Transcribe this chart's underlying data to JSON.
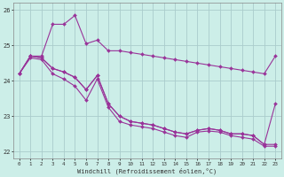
{
  "xlabel": "Windchill (Refroidissement éolien,°C)",
  "background_color": "#cceee8",
  "grid_color": "#aacccc",
  "line_color": "#993399",
  "x_hours": [
    0,
    1,
    2,
    3,
    4,
    5,
    6,
    7,
    8,
    9,
    10,
    11,
    12,
    13,
    14,
    15,
    16,
    17,
    18,
    19,
    20,
    21,
    22,
    23
  ],
  "series_max": [
    24.2,
    24.7,
    24.7,
    25.6,
    25.6,
    25.85,
    25.05,
    25.15,
    24.85,
    24.85,
    24.8,
    24.75,
    24.7,
    24.65,
    24.6,
    24.55,
    24.5,
    24.45,
    24.4,
    24.35,
    24.3,
    24.25,
    24.2,
    24.7
  ],
  "series_mid": [
    24.2,
    24.7,
    24.65,
    24.35,
    24.25,
    24.1,
    23.75,
    24.15,
    23.35,
    23.0,
    22.85,
    22.8,
    22.75,
    22.65,
    22.55,
    22.5,
    22.6,
    22.65,
    22.6,
    22.5,
    22.5,
    22.45,
    22.2,
    22.2
  ],
  "series_min": [
    24.2,
    24.65,
    24.6,
    24.2,
    24.05,
    23.85,
    23.45,
    24.05,
    23.25,
    22.85,
    22.75,
    22.7,
    22.65,
    22.55,
    22.45,
    22.4,
    22.55,
    22.58,
    22.55,
    22.45,
    22.4,
    22.35,
    22.15,
    22.15
  ],
  "series_last": [
    24.2,
    24.7,
    24.65,
    24.35,
    24.25,
    24.1,
    23.75,
    24.15,
    23.35,
    23.0,
    22.85,
    22.8,
    22.75,
    22.65,
    22.55,
    22.5,
    22.6,
    22.65,
    22.6,
    22.5,
    22.5,
    22.45,
    22.2,
    23.35
  ],
  "ylim": [
    21.8,
    26.2
  ],
  "yticks": [
    22,
    23,
    24,
    25,
    26
  ],
  "xticks": [
    0,
    1,
    2,
    3,
    4,
    5,
    6,
    7,
    8,
    9,
    10,
    11,
    12,
    13,
    14,
    15,
    16,
    17,
    18,
    19,
    20,
    21,
    22,
    23
  ]
}
